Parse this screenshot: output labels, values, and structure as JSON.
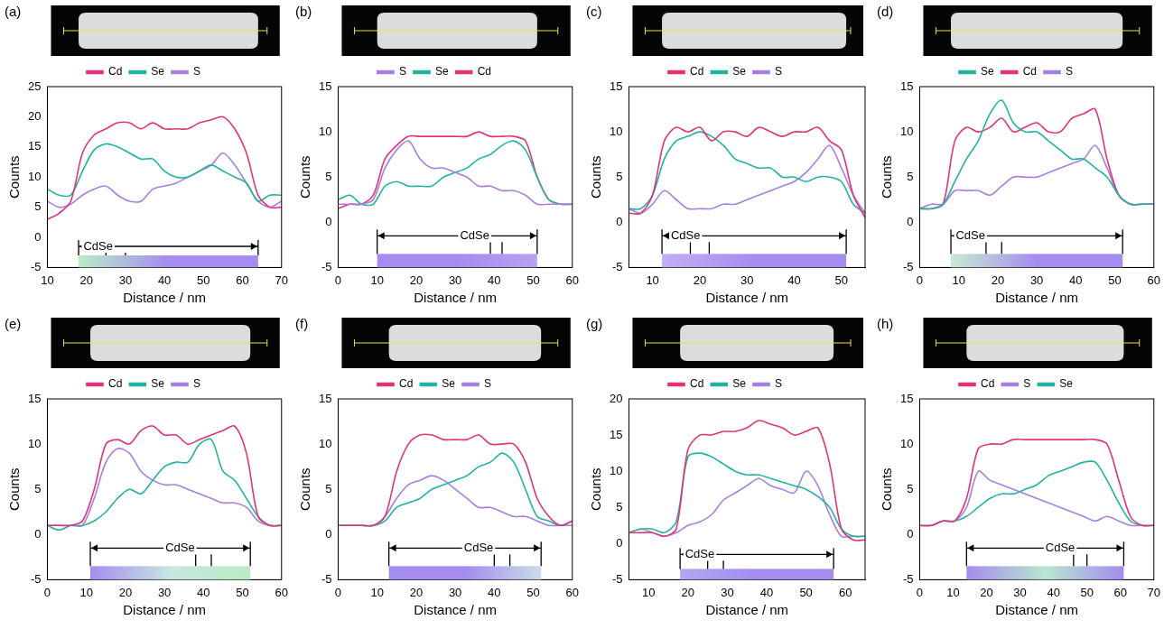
{
  "chart_data": [
    {
      "type": "line",
      "title": "(a)",
      "x_label": "Distance / nm",
      "y_label": "Counts",
      "grid": false,
      "legend": "top",
      "xlim": [
        10,
        70
      ],
      "xticks": [
        10,
        20,
        30,
        40,
        50,
        60,
        70
      ],
      "ylim": [
        -5,
        25
      ],
      "yticks": [
        -5,
        0,
        5,
        10,
        15,
        20,
        25
      ],
      "x": [
        10,
        13,
        16,
        19,
        22,
        25,
        28,
        31,
        34,
        37,
        40,
        43,
        46,
        49,
        52,
        55,
        58,
        61,
        64,
        67,
        70
      ],
      "series": [
        {
          "name": "Cd",
          "color": "#e0337a",
          "values": [
            3,
            4,
            6,
            14,
            17,
            18,
            19,
            19,
            18,
            19,
            18,
            18,
            18,
            19,
            19.5,
            20,
            18,
            14,
            7,
            5,
            5
          ]
        },
        {
          "name": "Se",
          "color": "#22b2a2",
          "values": [
            8,
            7,
            7,
            11,
            14.5,
            15.5,
            15,
            14,
            13,
            13,
            11,
            10,
            10,
            11,
            12,
            11,
            10,
            9,
            6,
            7,
            7
          ]
        },
        {
          "name": "S",
          "color": "#a77fe0",
          "values": [
            6,
            5,
            5.5,
            7,
            8,
            8.5,
            7,
            6,
            6,
            8,
            8.5,
            9,
            10,
            11,
            12,
            14,
            12,
            9,
            6,
            5,
            6
          ]
        }
      ],
      "annotations": [
        {
          "text": "CdSe",
          "x_start": 18,
          "x_end": 64,
          "y": -1.5,
          "label_x": 23,
          "marks": [
            25,
            30
          ],
          "band": [
            -5,
            -3
          ],
          "colors": [
            "#b9ecc4",
            "#a58cf0",
            "#a58cf0"
          ]
        }
      ]
    },
    {
      "type": "line",
      "title": "(b)",
      "x_label": "Distance / nm",
      "y_label": "Counts",
      "grid": false,
      "legend": "top",
      "xlim": [
        0,
        60
      ],
      "xticks": [
        0,
        10,
        20,
        30,
        40,
        50,
        60
      ],
      "ylim": [
        -5,
        15
      ],
      "yticks": [
        -5,
        0,
        5,
        10,
        15
      ],
      "x": [
        0,
        3,
        6,
        9,
        12,
        15,
        18,
        21,
        24,
        27,
        30,
        33,
        36,
        39,
        42,
        45,
        48,
        51,
        54,
        57,
        60
      ],
      "series": [
        {
          "name": "S",
          "color": "#a77fe0",
          "values": [
            2,
            2,
            2,
            2.5,
            6,
            8,
            9,
            7,
            6,
            6,
            5.5,
            5,
            4,
            4,
            3.5,
            3.5,
            3,
            2,
            2,
            2,
            2
          ]
        },
        {
          "name": "Se",
          "color": "#22b2a2",
          "values": [
            2.5,
            3,
            2,
            2,
            4,
            4.5,
            4,
            4,
            4,
            5,
            5.5,
            6,
            7,
            7.5,
            8.5,
            9,
            8,
            5,
            2.5,
            2,
            2
          ]
        },
        {
          "name": "Cd",
          "color": "#e0337a",
          "values": [
            1.5,
            2,
            2,
            3,
            7,
            8.5,
            9.5,
            9.5,
            9.5,
            9.5,
            9.5,
            9.5,
            10,
            9.5,
            9.5,
            9.5,
            9,
            5,
            2.5,
            2,
            2
          ]
        }
      ],
      "annotations": [
        {
          "text": "CdSe",
          "x_start": 10,
          "x_end": 51,
          "y": -1.5,
          "label_x": 35,
          "marks": [
            39,
            42
          ],
          "band": [
            -5,
            -3.5
          ],
          "colors": [
            "#a58cf0",
            "#a58cf0",
            "#b6a3f2"
          ]
        }
      ]
    },
    {
      "type": "line",
      "title": "(c)",
      "x_label": "Distance / nm",
      "y_label": "Counts",
      "grid": false,
      "legend": "top",
      "xlim": [
        5,
        55
      ],
      "xticks": [
        10,
        20,
        30,
        40,
        50
      ],
      "ylim": [
        -5,
        15
      ],
      "yticks": [
        -5,
        0,
        5,
        10,
        15
      ],
      "x": [
        5,
        7.5,
        10,
        12.5,
        15,
        17.5,
        20,
        22.5,
        25,
        27.5,
        30,
        32.5,
        35,
        37.5,
        40,
        42.5,
        45,
        47.5,
        50,
        52.5,
        55
      ],
      "series": [
        {
          "name": "Cd",
          "color": "#e0337a",
          "values": [
            1,
            1,
            3,
            9,
            10.5,
            10,
            10.5,
            9,
            10,
            10,
            9.5,
            10.5,
            10,
            9.5,
            10,
            10,
            10.5,
            9,
            8,
            3,
            0.5
          ]
        },
        {
          "name": "Se",
          "color": "#22b2a2",
          "values": [
            1.5,
            1.5,
            3,
            7,
            9,
            9.5,
            10,
            9.5,
            8.5,
            7,
            6.5,
            6,
            6,
            5,
            5,
            4.5,
            5,
            5,
            4.5,
            2,
            1
          ]
        },
        {
          "name": "S",
          "color": "#a77fe0",
          "values": [
            1.5,
            1,
            2,
            3.5,
            2.5,
            1.5,
            1.5,
            1.5,
            2,
            2,
            2.5,
            3,
            3.5,
            4,
            4.5,
            5.5,
            7,
            8.5,
            6,
            3,
            1
          ]
        }
      ],
      "annotations": [
        {
          "text": "CdSe",
          "x_start": 12,
          "x_end": 51,
          "y": -1.5,
          "label_x": 17,
          "marks": [
            18,
            22
          ],
          "band": [
            -5,
            -3.5
          ],
          "colors": [
            "#c0b0f2",
            "#a58cf0",
            "#a58cf0"
          ]
        }
      ]
    },
    {
      "type": "line",
      "title": "(d)",
      "x_label": "Distance / nm",
      "y_label": "Counts",
      "grid": false,
      "legend": "top",
      "xlim": [
        0,
        60
      ],
      "xticks": [
        0,
        10,
        20,
        30,
        40,
        50,
        60
      ],
      "ylim": [
        -5,
        15
      ],
      "yticks": [
        -5,
        0,
        5,
        10,
        15
      ],
      "x": [
        0,
        3,
        6,
        9,
        12,
        15,
        18,
        21,
        24,
        27,
        30,
        33,
        36,
        39,
        42,
        45,
        48,
        51,
        54,
        57,
        60
      ],
      "series": [
        {
          "name": "Se",
          "color": "#22b2a2",
          "values": [
            1.5,
            1.5,
            2,
            4.5,
            7,
            9,
            12,
            13.5,
            11,
            10,
            10,
            9,
            8,
            7,
            7,
            6,
            5,
            3,
            2,
            2,
            2
          ]
        },
        {
          "name": "Cd",
          "color": "#e0337a",
          "values": [
            1.5,
            1.5,
            2,
            9,
            10.5,
            10,
            10.5,
            11.5,
            10,
            10.5,
            11,
            10,
            10,
            11.5,
            12,
            12.5,
            7,
            3,
            2,
            2,
            2
          ]
        },
        {
          "name": "S",
          "color": "#a77fe0",
          "values": [
            1.5,
            2,
            2,
            3.5,
            3.5,
            3.5,
            3,
            4,
            5,
            5,
            5,
            5.5,
            6,
            6.5,
            7,
            8.5,
            6,
            3,
            2,
            2,
            2
          ]
        }
      ],
      "annotations": [
        {
          "text": "CdSe",
          "x_start": 8,
          "x_end": 52,
          "y": -1.5,
          "label_x": 13,
          "marks": [
            17,
            21
          ],
          "band": [
            -5,
            -3.5
          ],
          "colors": [
            "#c7ecd0",
            "#a58cf0",
            "#a58cf0"
          ]
        }
      ]
    },
    {
      "type": "line",
      "title": "(e)",
      "x_label": "Distance / nm",
      "y_label": "Counts",
      "grid": false,
      "legend": "top",
      "xlim": [
        0,
        60
      ],
      "xticks": [
        0,
        10,
        20,
        30,
        40,
        50,
        60
      ],
      "ylim": [
        -5,
        15
      ],
      "yticks": [
        -5,
        0,
        5,
        10,
        15
      ],
      "x": [
        0,
        3,
        6,
        9,
        12,
        15,
        18,
        21,
        24,
        27,
        30,
        33,
        36,
        39,
        42,
        45,
        48,
        51,
        54,
        57,
        60
      ],
      "series": [
        {
          "name": "Cd",
          "color": "#e0337a",
          "values": [
            1,
            1,
            1,
            1.5,
            5,
            10,
            10.5,
            10,
            11.5,
            12,
            11,
            11,
            10,
            10.5,
            11,
            11.5,
            12,
            9,
            2,
            1,
            1
          ]
        },
        {
          "name": "Se",
          "color": "#22b2a2",
          "values": [
            1,
            0.5,
            1,
            1,
            1.5,
            2.5,
            4,
            5,
            4.5,
            6,
            7.5,
            8,
            8,
            10,
            10.5,
            7,
            6,
            4,
            2,
            1,
            1
          ]
        },
        {
          "name": "S",
          "color": "#a77fe0",
          "values": [
            1,
            1,
            1,
            1,
            4,
            8,
            9.5,
            9,
            7,
            6,
            5.5,
            5.5,
            5,
            4.5,
            4,
            3.5,
            3.5,
            3,
            1.5,
            1,
            1
          ]
        }
      ],
      "annotations": [
        {
          "text": "CdSe",
          "x_start": 11,
          "x_end": 52,
          "y": -1.5,
          "label_x": 34,
          "marks": [
            38,
            42
          ],
          "band": [
            -5,
            -3.5
          ],
          "colors": [
            "#a58cf0",
            "#c7e6e0",
            "#b9ecc4"
          ]
        }
      ]
    },
    {
      "type": "line",
      "title": "(f)",
      "x_label": "Distance / nm",
      "y_label": "Counts",
      "grid": false,
      "legend": "top",
      "xlim": [
        0,
        60
      ],
      "xticks": [
        0,
        10,
        20,
        30,
        40,
        50,
        60
      ],
      "ylim": [
        -5,
        15
      ],
      "yticks": [
        -5,
        0,
        5,
        10,
        15
      ],
      "x": [
        0,
        3,
        6,
        9,
        12,
        15,
        18,
        21,
        24,
        27,
        30,
        33,
        36,
        39,
        42,
        45,
        48,
        51,
        54,
        57,
        60
      ],
      "series": [
        {
          "name": "Cd",
          "color": "#e0337a",
          "values": [
            1,
            1,
            1,
            1,
            2,
            7,
            10,
            11,
            11,
            10.5,
            10.5,
            10.5,
            11,
            10,
            10,
            10,
            8,
            4,
            2,
            1,
            1.5
          ]
        },
        {
          "name": "Se",
          "color": "#22b2a2",
          "values": [
            1,
            1,
            1,
            1,
            1.5,
            3,
            3.5,
            4,
            5,
            5.5,
            6,
            6.5,
            7.5,
            8,
            9,
            8,
            5,
            2,
            1.5,
            1,
            1.5
          ]
        },
        {
          "name": "S",
          "color": "#a77fe0",
          "values": [
            1,
            1,
            1,
            1,
            2,
            4,
            5.5,
            6,
            6.5,
            6,
            5,
            4,
            3,
            3,
            2.5,
            2,
            2,
            1.5,
            1,
            1,
            1
          ]
        }
      ],
      "annotations": [
        {
          "text": "CdSe",
          "x_start": 13,
          "x_end": 52,
          "y": -1.5,
          "label_x": 36,
          "marks": [
            40,
            44
          ],
          "band": [
            -5,
            -3.5
          ],
          "colors": [
            "#a58cf0",
            "#a58cf0",
            "#c9dbe8"
          ]
        }
      ]
    },
    {
      "type": "line",
      "title": "(g)",
      "x_label": "Distance / nm",
      "y_label": "Counts",
      "grid": false,
      "legend": "top",
      "xlim": [
        5,
        65
      ],
      "xticks": [
        10,
        20,
        30,
        40,
        50,
        60
      ],
      "ylim": [
        -5,
        20
      ],
      "yticks": [
        -5,
        0,
        5,
        10,
        15,
        20
      ],
      "x": [
        5,
        8,
        11,
        14,
        17,
        20,
        23,
        26,
        29,
        32,
        35,
        38,
        41,
        44,
        47,
        50,
        53,
        56,
        59,
        62,
        65
      ],
      "series": [
        {
          "name": "Cd",
          "color": "#e0337a",
          "values": [
            1.5,
            1.5,
            1.5,
            1,
            2,
            13,
            15,
            15,
            15.5,
            15.5,
            16,
            17,
            16.5,
            16,
            15,
            15.5,
            16,
            11,
            2,
            0.5,
            0.5
          ]
        },
        {
          "name": "Se",
          "color": "#22b2a2",
          "values": [
            1.5,
            2,
            2,
            1.5,
            3,
            12,
            12.5,
            12,
            11,
            10,
            9.5,
            9.5,
            9,
            8.5,
            8,
            7.5,
            6.5,
            5,
            2,
            1,
            1
          ]
        },
        {
          "name": "S",
          "color": "#a77fe0",
          "values": [
            1.5,
            2,
            1.5,
            1,
            1.5,
            2.5,
            3,
            4,
            6,
            7,
            8,
            9,
            8,
            7.5,
            7,
            10,
            8,
            4,
            1,
            1,
            1
          ]
        }
      ],
      "annotations": [
        {
          "text": "CdSe",
          "x_start": 18,
          "x_end": 57,
          "y": -1.5,
          "label_x": 23,
          "marks": [
            25,
            29
          ],
          "band": [
            -5,
            -3.5
          ],
          "colors": [
            "#b0a8f0",
            "#a58cf0",
            "#a58cf0"
          ]
        }
      ]
    },
    {
      "type": "line",
      "title": "(h)",
      "x_label": "Distance / nm",
      "y_label": "Counts",
      "grid": false,
      "legend": "top",
      "xlim": [
        0,
        70
      ],
      "xticks": [
        0,
        10,
        20,
        30,
        40,
        50,
        60,
        70
      ],
      "ylim": [
        -5,
        15
      ],
      "yticks": [
        -5,
        0,
        5,
        10,
        15
      ],
      "x": [
        0,
        3.5,
        7,
        10.5,
        14,
        17.5,
        21,
        24.5,
        28,
        31.5,
        35,
        38.5,
        42,
        45.5,
        49,
        52.5,
        56,
        59.5,
        63,
        66.5,
        70
      ],
      "series": [
        {
          "name": "Cd",
          "color": "#e0337a",
          "values": [
            1,
            1,
            1.5,
            1.5,
            4,
            9.5,
            10,
            10,
            10.5,
            10.5,
            10.5,
            10.5,
            10.5,
            10.5,
            10.5,
            10.5,
            10,
            6,
            2,
            1,
            1
          ]
        },
        {
          "name": "S",
          "color": "#a77fe0",
          "values": [
            1,
            1,
            1.5,
            1.5,
            3,
            7,
            6,
            5.5,
            5,
            4.5,
            4,
            3.5,
            3,
            2.5,
            2,
            1.5,
            2,
            1.5,
            1,
            1,
            1
          ]
        },
        {
          "name": "Se",
          "color": "#22b2a2",
          "values": [
            1,
            1,
            1.5,
            1.5,
            2,
            3,
            4,
            4.5,
            4.5,
            5,
            5.5,
            6.5,
            7,
            7.5,
            8,
            8,
            6,
            3.5,
            1.5,
            1,
            1
          ]
        }
      ],
      "annotations": [
        {
          "text": "CdSe",
          "x_start": 14,
          "x_end": 61,
          "y": -1.5,
          "label_x": 42,
          "marks": [
            46,
            50
          ],
          "band": [
            -5,
            -3.5
          ],
          "colors": [
            "#a58cf0",
            "#b9e6d0",
            "#a58cf0"
          ]
        }
      ]
    }
  ]
}
